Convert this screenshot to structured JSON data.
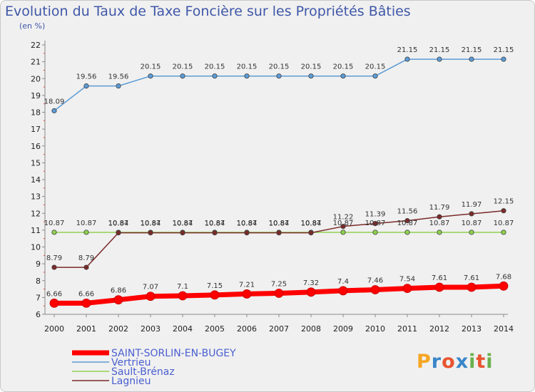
{
  "chart_data": {
    "type": "line",
    "title": "Evolution du Taux de Taxe Foncière sur les Propriétés Bâties",
    "subtitle": "(en %)",
    "x": [
      "2000",
      "2001",
      "2002",
      "2003",
      "2004",
      "2005",
      "2006",
      "2007",
      "2008",
      "2009",
      "2010",
      "2011",
      "2012",
      "2013",
      "2014"
    ],
    "ylim": [
      6,
      22
    ],
    "yticks": [
      6,
      7,
      8,
      9,
      10,
      11,
      12,
      13,
      14,
      15,
      16,
      17,
      18,
      19,
      20,
      21,
      22
    ],
    "grid": false,
    "legend_position": "bottom-left",
    "series": [
      {
        "name": "SAINT-SORLIN-EN-BUGEY",
        "color": "#ff0000",
        "values": [
          6.66,
          6.66,
          6.86,
          7.07,
          7.1,
          7.15,
          7.21,
          7.25,
          7.32,
          7.4,
          7.46,
          7.54,
          7.61,
          7.61,
          7.68
        ]
      },
      {
        "name": "Vertrieu",
        "color": "#5b9bd5",
        "values": [
          18.09,
          19.56,
          19.56,
          20.15,
          20.15,
          20.15,
          20.15,
          20.15,
          20.15,
          20.15,
          20.15,
          21.15,
          21.15,
          21.15,
          21.15
        ]
      },
      {
        "name": "Sault-Brénaz",
        "color": "#8fd14f",
        "values": [
          10.87,
          10.87,
          10.87,
          10.87,
          10.87,
          10.87,
          10.87,
          10.87,
          10.87,
          10.87,
          10.87,
          10.87,
          10.87,
          10.87,
          10.87
        ]
      },
      {
        "name": "Lagnieu",
        "color": "#7a2a2a",
        "values": [
          8.79,
          8.79,
          10.84,
          10.84,
          10.84,
          10.84,
          10.84,
          10.84,
          10.84,
          11.22,
          11.39,
          11.56,
          11.79,
          11.97,
          12.15
        ]
      }
    ]
  },
  "logo": {
    "letters": [
      "P",
      "r",
      "o",
      "x",
      "i",
      "t",
      "i"
    ],
    "colors": [
      "#f5a623",
      "#3a86c8",
      "#e8542f",
      "#3a86c8",
      "#6ab04c",
      "#e8542f",
      "#6ab04c"
    ]
  }
}
